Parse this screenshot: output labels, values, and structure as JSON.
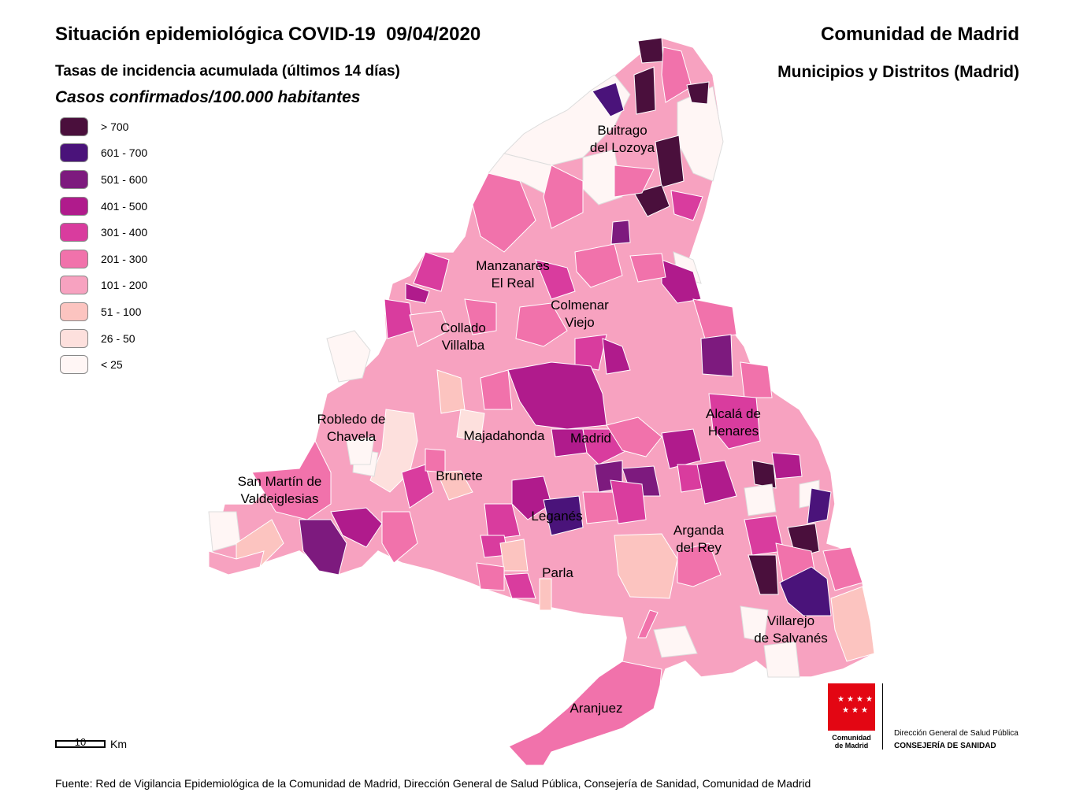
{
  "header": {
    "title": "Situación epidemiológica COVID-19  09/04/2020",
    "subtitle_rate": "Tasas de incidencia acumulada (últimos 14 días)",
    "subtitle_units": "Casos confirmados/100.000 habitantes",
    "region": "Comunidad de Madrid",
    "scope": "Municipios y Distritos (Madrid)"
  },
  "legend": {
    "items": [
      {
        "label": "> 700",
        "color": "#4a0f3c"
      },
      {
        "label": "601 - 700",
        "color": "#4a137a"
      },
      {
        "label": "501 - 600",
        "color": "#7d1a7e"
      },
      {
        "label": "401 - 500",
        "color": "#b01b8c"
      },
      {
        "label": "301 - 400",
        "color": "#d93c9e"
      },
      {
        "label": "201 - 300",
        "color": "#f172ab"
      },
      {
        "label": "101 - 200",
        "color": "#f7a2c0"
      },
      {
        "label": "51 - 100",
        "color": "#fcc4c0"
      },
      {
        "label": "26 - 50",
        "color": "#fde0dd"
      },
      {
        "label": "< 25",
        "color": "#fff6f5"
      }
    ]
  },
  "places": [
    {
      "name": "Buitrago\ndel Lozoya"
    },
    {
      "name": "Manzanares\nEl Real"
    },
    {
      "name": "Colmenar\nViejo"
    },
    {
      "name": "Collado\nVillalba"
    },
    {
      "name": "Robledo de\nChavela"
    },
    {
      "name": "Majadahonda"
    },
    {
      "name": "Madrid"
    },
    {
      "name": "Alcalá de\nHenares"
    },
    {
      "name": "Brunete"
    },
    {
      "name": "San Martín de\nValdeiglesias"
    },
    {
      "name": "Leganés"
    },
    {
      "name": "Arganda\ndel Rey"
    },
    {
      "name": "Parla"
    },
    {
      "name": "Villarejo\nde Salvanés"
    },
    {
      "name": "Aranjuez"
    }
  ],
  "scale": {
    "value": "10",
    "unit": "Km"
  },
  "logo": {
    "name": "Comunidad\nde Madrid",
    "line1": "Dirección General de Salud Pública",
    "line2": "CONSEJERÍA DE SANIDAD"
  },
  "source": "Fuente: Red de Vigilancia Epidemiológica de la Comunidad de Madrid, Dirección General de Salud Pública, Consejería de Sanidad, Comunidad de Madrid"
}
